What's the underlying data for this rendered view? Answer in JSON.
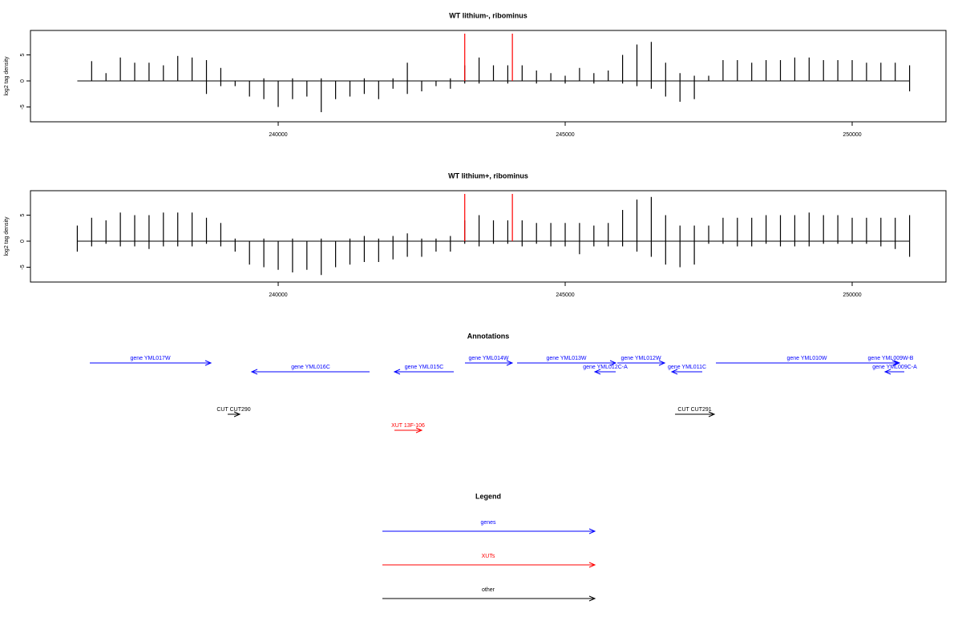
{
  "chart_data": [
    {
      "type": "bar",
      "title": "WT lithium-, ribominus",
      "ylabel": "log2 tag density",
      "x": [
        236500,
        236750,
        237000,
        237250,
        237500,
        237750,
        238000,
        238250,
        238500,
        238750,
        239000,
        239250,
        239500,
        239750,
        240000,
        240250,
        240500,
        240750,
        241000,
        241250,
        241500,
        241750,
        242000,
        242250,
        242500,
        242750,
        243000,
        243250,
        243500,
        243750,
        244000,
        244250,
        244500,
        244750,
        245000,
        245250,
        245500,
        245750,
        246000,
        246250,
        246500,
        246750,
        247000,
        247250,
        247500,
        247750,
        248000,
        248250,
        248500,
        248750,
        249000,
        249250,
        249500,
        249750,
        250000,
        250250,
        250500,
        250750,
        251000
      ],
      "series": [
        {
          "color": "#000000",
          "values": [
            0,
            3.8,
            1.5,
            4.5,
            3.5,
            3.5,
            3,
            4.8,
            4.5,
            4,
            2.5,
            0,
            0,
            0.5,
            0,
            0.5,
            0,
            0.5,
            0,
            0,
            0.5,
            0,
            0.5,
            3.5,
            0,
            0,
            0.5,
            3,
            4.5,
            3,
            3,
            3,
            2,
            1.5,
            1,
            2.5,
            1.5,
            2,
            5,
            7,
            7.5,
            3.5,
            1.5,
            1,
            1,
            4,
            4,
            3.5,
            4,
            4,
            4.5,
            4.5,
            4,
            4,
            4,
            3.5,
            3.5,
            3.5,
            3
          ]
        },
        {
          "color": "#000000",
          "values": [
            0,
            0,
            0,
            0,
            0,
            0,
            0,
            0,
            0,
            -2.5,
            -1,
            -1,
            -3,
            -3.5,
            -5,
            -3.5,
            -3,
            -6,
            -3.5,
            -3,
            -2.5,
            -3.5,
            -1.5,
            -2.5,
            -2,
            -1,
            -1.5,
            -0.5,
            -0.5,
            0,
            -0.5,
            0,
            -0.5,
            0,
            -0.5,
            0,
            -0.5,
            0,
            -0.5,
            -1,
            -1.5,
            -3,
            -4,
            -3.5,
            0,
            0,
            0,
            0,
            0,
            0,
            0,
            0,
            0,
            0,
            0,
            0,
            0,
            0,
            -2
          ]
        }
      ],
      "markers": [
        243250,
        244080
      ],
      "marker_color": "#ff0000",
      "xlim": [
        235684,
        251634
      ],
      "xticks": [
        240000,
        245000,
        250000
      ],
      "ylim": [
        -7.85,
        9.7
      ],
      "yticks": [
        -5,
        0,
        5
      ]
    },
    {
      "type": "bar",
      "title": "WT lithium+, ribominus",
      "ylabel": "log2 tag density",
      "x": [
        236500,
        236750,
        237000,
        237250,
        237500,
        237750,
        238000,
        238250,
        238500,
        238750,
        239000,
        239250,
        239500,
        239750,
        240000,
        240250,
        240500,
        240750,
        241000,
        241250,
        241500,
        241750,
        242000,
        242250,
        242500,
        242750,
        243000,
        243250,
        243500,
        243750,
        244000,
        244250,
        244500,
        244750,
        245000,
        245250,
        245500,
        245750,
        246000,
        246250,
        246500,
        246750,
        247000,
        247250,
        247500,
        247750,
        248000,
        248250,
        248500,
        248750,
        249000,
        249250,
        249500,
        249750,
        250000,
        250250,
        250500,
        250750,
        251000
      ],
      "series": [
        {
          "color": "#000000",
          "values": [
            3,
            4.5,
            4,
            5.5,
            5,
            5,
            5.5,
            5.5,
            5.5,
            4.5,
            3.5,
            0.5,
            0,
            0.5,
            0,
            0.5,
            0,
            0.5,
            0,
            0.5,
            1,
            0.5,
            1,
            1.5,
            0.5,
            0.5,
            1,
            4,
            5,
            4,
            4,
            4,
            3.5,
            3.5,
            3.5,
            3.5,
            3,
            3.5,
            6,
            8,
            8.5,
            5,
            3,
            3,
            3,
            4.5,
            4.5,
            4.5,
            5,
            5,
            5,
            5.5,
            5,
            5,
            4.5,
            4.5,
            4.5,
            4.5,
            5
          ]
        },
        {
          "color": "#000000",
          "values": [
            -2,
            -1,
            -0.5,
            -1,
            -1,
            -1.5,
            -1,
            -1,
            -1,
            -0.5,
            -1,
            -2,
            -4.5,
            -5,
            -5.5,
            -6,
            -5.5,
            -6.5,
            -5,
            -4.5,
            -4,
            -4,
            -3.5,
            -3,
            -3,
            -2,
            -2,
            -0.5,
            -1,
            -0.5,
            -0.5,
            -1,
            -0.5,
            -1,
            -1,
            -2.5,
            -1,
            -1,
            -1,
            -2,
            -3,
            -4.5,
            -5,
            -4.5,
            -0.5,
            -0.5,
            -1,
            -1,
            -0.5,
            -1,
            -1,
            -1,
            -0.5,
            -0.5,
            -0.5,
            -0.5,
            -1,
            -1.5,
            -3
          ]
        }
      ],
      "markers": [
        243250,
        244080
      ],
      "marker_color": "#ff0000",
      "xlim": [
        235684,
        251634
      ],
      "xticks": [
        240000,
        245000,
        250000
      ],
      "ylim": [
        -7.85,
        9.7
      ],
      "yticks": [
        -5,
        0,
        5
      ]
    }
  ],
  "annotations": {
    "title": "Annotations",
    "features": [
      {
        "label": "gene YML017W",
        "start": 236718,
        "end": 238827,
        "strand": "+",
        "color": "#0000ff"
      },
      {
        "label": "gene YML016C",
        "start": 239539,
        "end": 241592,
        "strand": "-",
        "color": "#0000ff"
      },
      {
        "label": "gene YML015C",
        "start": 242025,
        "end": 243059,
        "strand": "-",
        "color": "#0000ff"
      },
      {
        "label": "gene YML014W",
        "start": 243254,
        "end": 244078,
        "strand": "+",
        "color": "#0000ff"
      },
      {
        "label": "gene YML013W",
        "start": 244162,
        "end": 245880,
        "strand": "+",
        "color": "#0000ff"
      },
      {
        "label": "gene YML012C-A",
        "start": 245517,
        "end": 245880,
        "strand": "-",
        "color": "#0000ff"
      },
      {
        "label": "gene YML012W",
        "start": 245908,
        "end": 246732,
        "strand": "+",
        "color": "#0000ff"
      },
      {
        "label": "gene YML011C",
        "start": 246858,
        "end": 247388,
        "strand": "-",
        "color": "#0000ff"
      },
      {
        "label": "gene YML010W",
        "start": 247626,
        "end": 250796,
        "strand": "+",
        "color": "#0000ff"
      },
      {
        "label": "gene YML009W-B",
        "start": 250517,
        "end": 250824,
        "strand": "+",
        "color": "#0000ff"
      },
      {
        "label": "gene YML009C-A",
        "start": 250573,
        "end": 250908,
        "strand": "-",
        "color": "#0000ff"
      },
      {
        "label": "CUT CUT290",
        "start": 239120,
        "end": 239330,
        "strand": "+",
        "color": "#000000"
      },
      {
        "label": "CUT CUT291",
        "start": 246914,
        "end": 247598,
        "strand": "+",
        "color": "#000000"
      },
      {
        "label": "XUT 13F-106",
        "start": 242025,
        "end": 242500,
        "strand": "+",
        "color": "#ff0000"
      }
    ]
  },
  "legend": {
    "title": "Legend",
    "items": [
      {
        "label": "genes",
        "color": "#0000ff"
      },
      {
        "label": "XUTs",
        "color": "#ff0000"
      },
      {
        "label": "other",
        "color": "#000000"
      }
    ]
  }
}
